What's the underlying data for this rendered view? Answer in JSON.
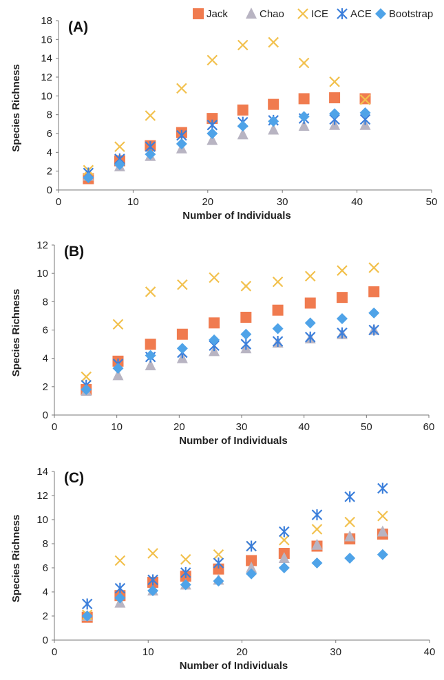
{
  "legend": {
    "items": [
      {
        "name": "Jack",
        "marker": "square",
        "color": "#F07B4F"
      },
      {
        "name": "Chao",
        "marker": "triangle",
        "color": "#B8B4C2"
      },
      {
        "name": "ICE",
        "marker": "x",
        "color": "#F2C14E"
      },
      {
        "name": "ACE",
        "marker": "asterisk",
        "color": "#3C7FDB"
      },
      {
        "name": "Bootstrap",
        "marker": "diamond",
        "color": "#4FA3E8"
      }
    ],
    "placement": "top-right"
  },
  "chart_data": [
    {
      "type": "scatter",
      "panel_label": "(A)",
      "xlabel": "Number of Individuals",
      "ylabel": "Species Richness",
      "xlim": [
        0,
        50
      ],
      "ylim": [
        0,
        18
      ],
      "xticks": [
        0,
        10,
        20,
        30,
        40,
        50
      ],
      "yticks": [
        0,
        2,
        4,
        6,
        8,
        10,
        12,
        14,
        16,
        18
      ],
      "x": [
        4,
        8.2,
        12.3,
        16.5,
        20.6,
        24.7,
        28.8,
        32.9,
        37,
        41.1
      ],
      "series": [
        {
          "name": "Jack",
          "values": [
            1.2,
            3.1,
            4.7,
            6.1,
            7.6,
            8.5,
            9.1,
            9.7,
            9.8,
            9.7
          ]
        },
        {
          "name": "Chao",
          "values": [
            1.5,
            2.5,
            3.6,
            4.4,
            5.3,
            5.9,
            6.4,
            6.8,
            6.9,
            6.9
          ]
        },
        {
          "name": "ICE",
          "values": [
            2.1,
            4.6,
            7.9,
            10.8,
            13.8,
            15.4,
            15.7,
            13.5,
            11.5,
            9.6
          ]
        },
        {
          "name": "ACE",
          "values": [
            1.8,
            3.3,
            4.6,
            5.8,
            6.9,
            7.2,
            7.4,
            7.6,
            7.5,
            7.5
          ]
        },
        {
          "name": "Bootstrap",
          "values": [
            1.3,
            2.7,
            3.8,
            4.9,
            6.0,
            6.8,
            7.3,
            7.8,
            8.1,
            8.2
          ]
        }
      ]
    },
    {
      "type": "scatter",
      "panel_label": "(B)",
      "xlabel": "Number of Individuals",
      "ylabel": "Species Richness",
      "xlim": [
        0,
        60
      ],
      "ylim": [
        0,
        12
      ],
      "xticks": [
        0,
        10,
        20,
        30,
        40,
        50,
        60
      ],
      "yticks": [
        0,
        2,
        4,
        6,
        8,
        10,
        12
      ],
      "x": [
        5.1,
        10.2,
        15.4,
        20.5,
        25.6,
        30.7,
        35.8,
        41,
        46.1,
        51.2
      ],
      "series": [
        {
          "name": "Jack",
          "values": [
            1.8,
            3.8,
            5.0,
            5.7,
            6.5,
            6.9,
            7.4,
            7.9,
            8.3,
            8.7
          ]
        },
        {
          "name": "Chao",
          "values": [
            1.7,
            2.8,
            3.5,
            4.0,
            4.5,
            4.7,
            5.1,
            5.4,
            5.7,
            6.0
          ]
        },
        {
          "name": "ICE",
          "values": [
            2.7,
            6.4,
            8.7,
            9.2,
            9.7,
            9.1,
            9.4,
            9.8,
            10.2,
            10.4
          ]
        },
        {
          "name": "ACE",
          "values": [
            2.1,
            3.6,
            4.1,
            4.4,
            4.9,
            5.0,
            5.2,
            5.5,
            5.8,
            6.0
          ]
        },
        {
          "name": "Bootstrap",
          "values": [
            1.8,
            3.3,
            4.2,
            4.7,
            5.3,
            5.7,
            6.1,
            6.5,
            6.8,
            7.2
          ]
        }
      ]
    },
    {
      "type": "scatter",
      "panel_label": "(C)",
      "xlabel": "Number of Individuals",
      "ylabel": "Species Richness",
      "xlim": [
        0,
        40
      ],
      "ylim": [
        0,
        14
      ],
      "xticks": [
        0,
        10,
        20,
        30,
        40
      ],
      "yticks": [
        0,
        2,
        4,
        6,
        8,
        10,
        12,
        14
      ],
      "x": [
        3.5,
        7,
        10.5,
        14,
        17.5,
        21,
        24.5,
        28,
        31.5,
        35
      ],
      "series": [
        {
          "name": "Jack",
          "values": [
            1.9,
            3.7,
            4.8,
            5.3,
            5.9,
            6.6,
            7.2,
            7.8,
            8.4,
            8.8
          ]
        },
        {
          "name": "Chao",
          "values": [
            2.0,
            3.1,
            4.1,
            4.6,
            5.0,
            6.0,
            6.8,
            7.9,
            8.6,
            9.0
          ]
        },
        {
          "name": "ICE",
          "values": [
            2.1,
            6.6,
            7.2,
            6.7,
            7.1,
            7.8,
            8.3,
            9.2,
            9.8,
            10.3
          ]
        },
        {
          "name": "ACE",
          "values": [
            3.0,
            4.3,
            5.0,
            5.6,
            6.4,
            7.8,
            9.0,
            10.4,
            11.9,
            12.6
          ]
        },
        {
          "name": "Bootstrap",
          "values": [
            2.0,
            3.5,
            4.1,
            4.6,
            4.9,
            5.5,
            6.0,
            6.4,
            6.8,
            7.1
          ]
        }
      ]
    }
  ]
}
